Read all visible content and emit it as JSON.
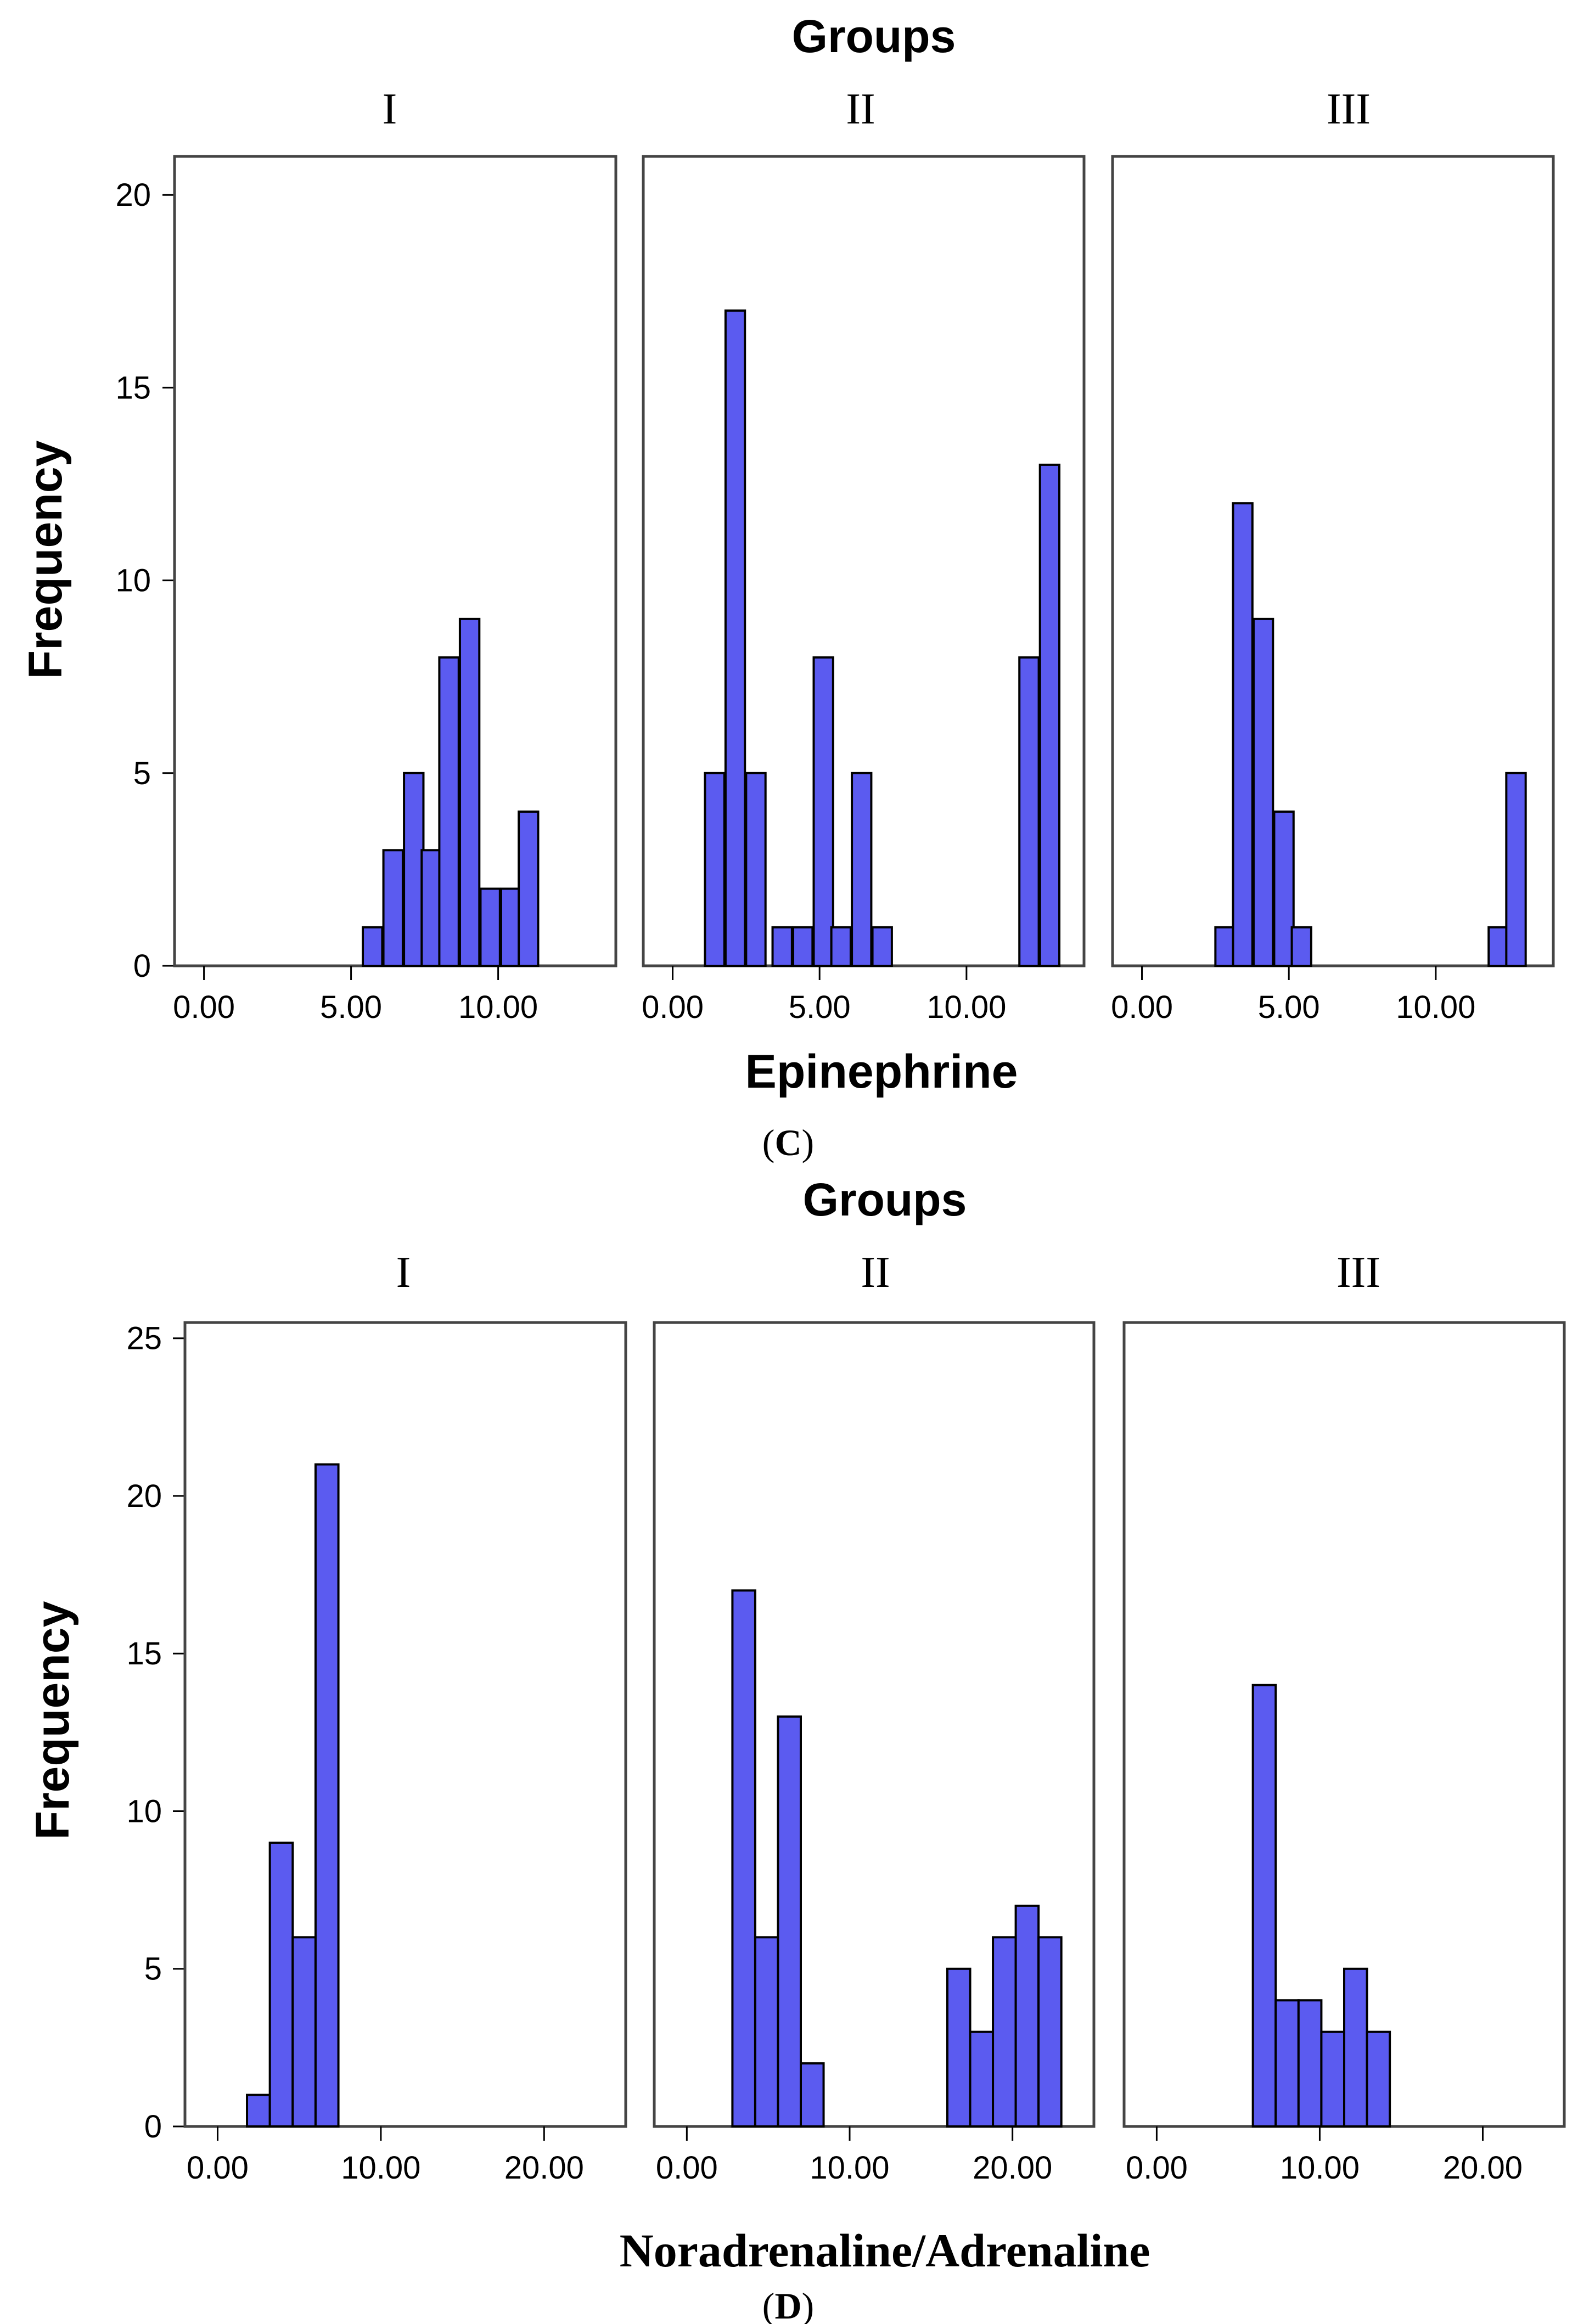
{
  "chart_data": [
    {
      "type": "bar",
      "group_title": "Groups",
      "panel_labels": [
        "I",
        "II",
        "III"
      ],
      "xlabel": "Epinephrine",
      "ylabel": "Frequency",
      "caption": "C",
      "xlim": [
        -1,
        14
      ],
      "ylim": [
        0,
        21
      ],
      "yticks": [
        0,
        5,
        10,
        15,
        20
      ],
      "ytick_labels": [
        "0",
        "5",
        "10",
        "15",
        "20"
      ],
      "xticks": [
        0,
        5,
        10
      ],
      "xtick_labels": [
        "0.00",
        "5.00",
        "10.00"
      ],
      "bin_width": 0.66,
      "bar_color": "#5b5bf0",
      "series": [
        {
          "bins": [
            5.4,
            6.1,
            6.8,
            7.4,
            8.0,
            8.7,
            9.4,
            10.1,
            10.7
          ],
          "values": [
            1,
            3,
            5,
            3,
            8,
            9,
            2,
            2,
            4
          ]
        },
        {
          "bins": [
            1.1,
            1.8,
            2.5,
            3.4,
            4.1,
            4.8,
            5.4,
            6.1,
            6.8,
            11.8,
            12.5
          ],
          "values": [
            5,
            17,
            5,
            1,
            1,
            8,
            1,
            5,
            1,
            8,
            13
          ]
        },
        {
          "bins": [
            2.5,
            3.1,
            3.8,
            4.5,
            5.1,
            11.8,
            12.4
          ],
          "values": [
            1,
            12,
            9,
            4,
            1,
            1,
            5
          ]
        }
      ]
    },
    {
      "type": "bar",
      "group_title": "Groups",
      "panel_labels": [
        "I",
        "II",
        "III"
      ],
      "xlabel": "Noradrenaline/Adrenaline",
      "ylabel": "Frequency",
      "caption": "D",
      "xlim": [
        -2,
        25
      ],
      "ylim": [
        0,
        25.5
      ],
      "yticks": [
        0,
        5,
        10,
        15,
        20,
        25
      ],
      "ytick_labels": [
        "0",
        "5",
        "10",
        "15",
        "20",
        "25"
      ],
      "xticks": [
        0,
        10,
        20
      ],
      "xtick_labels": [
        "0.00",
        "10.00",
        "20.00"
      ],
      "bin_width": 1.4,
      "bar_color": "#5b5bf0",
      "series": [
        {
          "bins": [
            1.8,
            3.2,
            4.6,
            6.0
          ],
          "values": [
            1,
            9,
            6,
            21
          ]
        },
        {
          "bins": [
            2.8,
            4.2,
            5.6,
            7.0,
            16.0,
            17.4,
            18.8,
            20.2,
            21.6
          ],
          "values": [
            17,
            6,
            13,
            2,
            5,
            3,
            6,
            7,
            6
          ]
        },
        {
          "bins": [
            5.9,
            7.3,
            8.7,
            10.1,
            11.5,
            12.9
          ],
          "values": [
            14,
            4,
            4,
            3,
            5,
            3
          ]
        }
      ]
    }
  ]
}
